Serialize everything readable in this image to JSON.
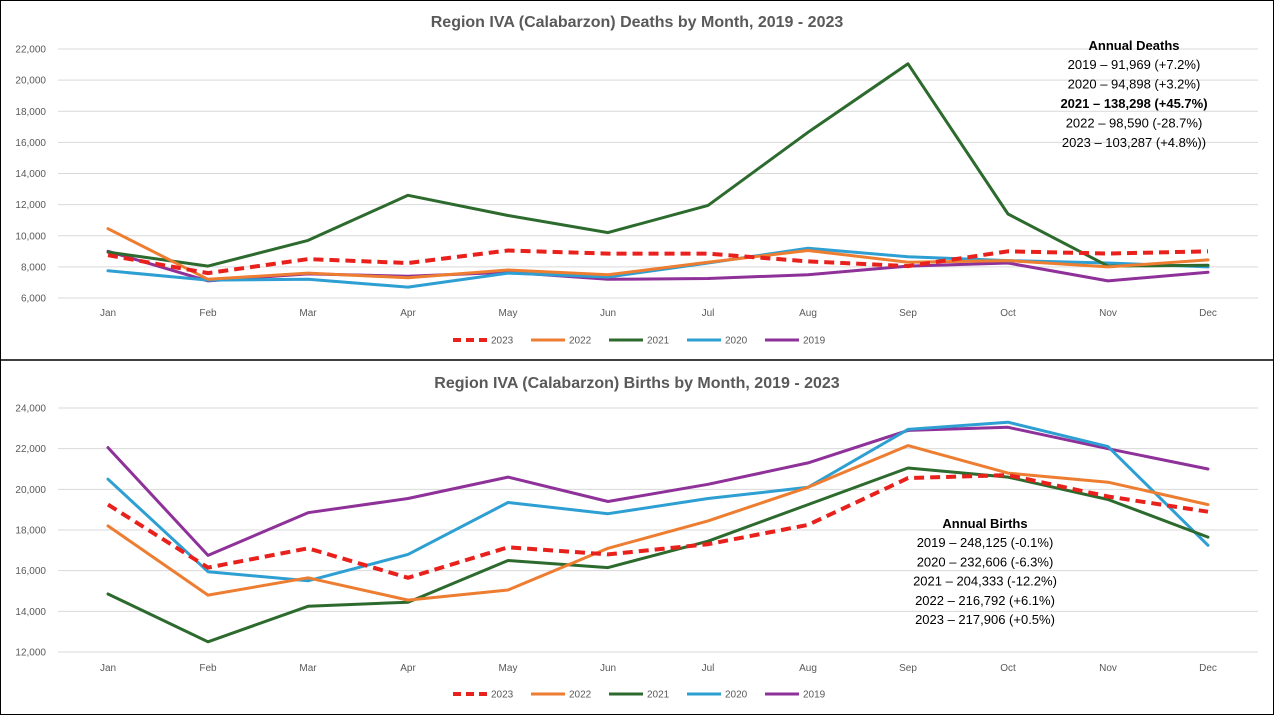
{
  "chart_data": [
    {
      "type": "line",
      "title": "Region IVA (Calabarzon) Deaths by Month, 2019 - 2023",
      "categories": [
        "Jan",
        "Feb",
        "Mar",
        "Apr",
        "May",
        "Jun",
        "Jul",
        "Aug",
        "Sep",
        "Oct",
        "Nov",
        "Dec"
      ],
      "y_ticks": [
        "6,000",
        "8,000",
        "10,000",
        "12,000",
        "14,000",
        "16,000",
        "18,000",
        "20,000",
        "22,000"
      ],
      "ylim": [
        6000,
        22000
      ],
      "grid": true,
      "legend_position": "bottom",
      "series": [
        {
          "name": "2023",
          "color": "#e8211c",
          "dashed": true,
          "values": [
            8750,
            7600,
            8500,
            8250,
            9050,
            8850,
            8850,
            8350,
            8050,
            9000,
            8850,
            9000
          ]
        },
        {
          "name": "2022",
          "color": "#ed7d31",
          "dashed": false,
          "values": [
            10450,
            7200,
            7600,
            7300,
            7800,
            7500,
            8300,
            9050,
            8300,
            8400,
            8000,
            8450
          ]
        },
        {
          "name": "2021",
          "color": "#2d6a2d",
          "dashed": false,
          "values": [
            8950,
            8050,
            9700,
            12600,
            11300,
            10200,
            11950,
            16650,
            21050,
            11400,
            8050,
            8100
          ]
        },
        {
          "name": "2020",
          "color": "#2e9fd2",
          "dashed": false,
          "values": [
            7750,
            7150,
            7200,
            6700,
            7600,
            7350,
            8250,
            9200,
            8650,
            8400,
            8250,
            8000
          ]
        },
        {
          "name": "2019",
          "color": "#8e3199",
          "dashed": false,
          "values": [
            9000,
            7100,
            7550,
            7400,
            7650,
            7200,
            7250,
            7500,
            8050,
            8250,
            7100,
            7650
          ]
        }
      ],
      "annotation": {
        "title": "Annual Deaths",
        "lines": [
          {
            "text": "2019 – 91,969 (+7.2%)",
            "bold": false
          },
          {
            "text": "2020 – 94,898 (+3.2%)",
            "bold": false
          },
          {
            "text": "2021 – 138,298 (+45.7%)",
            "bold": true
          },
          {
            "text": "2022 – 98,590 (-28.7%)",
            "bold": false
          },
          {
            "text": "2023 – 103,287 (+4.8%))",
            "bold": false
          }
        ]
      }
    },
    {
      "type": "line",
      "title": "Region IVA (Calabarzon) Births by Month, 2019 - 2023",
      "categories": [
        "Jan",
        "Feb",
        "Mar",
        "Apr",
        "May",
        "Jun",
        "Jul",
        "Aug",
        "Sep",
        "Oct",
        "Nov",
        "Dec"
      ],
      "y_ticks": [
        "12,000",
        "14,000",
        "16,000",
        "18,000",
        "20,000",
        "22,000",
        "24,000"
      ],
      "ylim": [
        12000,
        24000
      ],
      "grid": true,
      "legend_position": "bottom",
      "series": [
        {
          "name": "2023",
          "color": "#e8211c",
          "dashed": true,
          "values": [
            19250,
            16150,
            17100,
            15650,
            17150,
            16800,
            17300,
            18250,
            20550,
            20700,
            19650,
            18900
          ]
        },
        {
          "name": "2022",
          "color": "#ed7d31",
          "dashed": false,
          "values": [
            18200,
            14800,
            15650,
            14550,
            15050,
            17100,
            18450,
            20100,
            22150,
            20800,
            20350,
            19250
          ]
        },
        {
          "name": "2021",
          "color": "#2d6a2d",
          "dashed": false,
          "values": [
            14850,
            12500,
            14250,
            14450,
            16500,
            16150,
            17450,
            19250,
            21050,
            20600,
            19500,
            17650
          ]
        },
        {
          "name": "2020",
          "color": "#2e9fd2",
          "dashed": false,
          "values": [
            20500,
            15950,
            15500,
            16800,
            19350,
            18800,
            19550,
            20100,
            22950,
            23300,
            22100,
            17250
          ]
        },
        {
          "name": "2019",
          "color": "#8e3199",
          "dashed": false,
          "values": [
            22050,
            16750,
            18850,
            19550,
            20600,
            19400,
            20250,
            21300,
            22900,
            23050,
            22000,
            21000
          ]
        }
      ],
      "annotation": {
        "title": "Annual Births",
        "lines": [
          {
            "text": "2019 – 248,125 (-0.1%)",
            "bold": false
          },
          {
            "text": "2020 – 232,606 (-6.3%)",
            "bold": false
          },
          {
            "text": "2021 – 204,333 (-12.2%)",
            "bold": false
          },
          {
            "text": "2022 – 216,792 (+6.1%)",
            "bold": false
          },
          {
            "text": "2023 – 217,906 (+0.5%)",
            "bold": false
          }
        ]
      }
    }
  ]
}
